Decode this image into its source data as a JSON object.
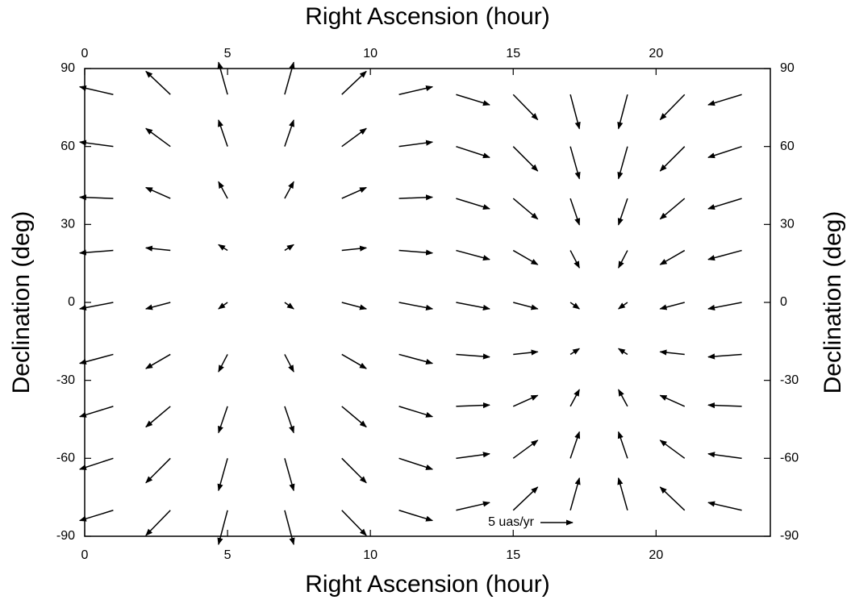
{
  "chart_data": {
    "type": "quiver",
    "xlabel": "Right Ascension (hour)",
    "ylabel": "Declination (deg)",
    "xlim": [
      0,
      24
    ],
    "ylim": [
      -90,
      90
    ],
    "xticks": [
      0,
      5,
      10,
      15,
      20
    ],
    "yticks": [
      -90,
      -60,
      -30,
      0,
      30,
      60,
      90
    ],
    "color": "#000000",
    "reference": {
      "label": "5 uas/yr",
      "value": 5
    },
    "x": [
      1,
      3,
      5,
      7,
      9,
      11,
      13,
      15,
      17,
      19,
      21,
      23,
      1,
      3,
      5,
      7,
      9,
      11,
      13,
      15,
      17,
      19,
      21,
      23,
      1,
      3,
      5,
      7,
      9,
      11,
      13,
      15,
      17,
      19,
      21,
      23,
      1,
      3,
      5,
      7,
      9,
      11,
      13,
      15,
      17,
      19,
      21,
      23,
      1,
      3,
      5,
      7,
      9,
      11,
      13,
      15,
      17,
      19,
      21,
      23,
      1,
      3,
      5,
      7,
      9,
      11,
      13,
      15,
      17,
      19,
      21,
      23,
      1,
      3,
      5,
      7,
      9,
      11,
      13,
      15,
      17,
      19,
      21,
      23,
      1,
      3,
      5,
      7,
      9,
      11,
      13,
      15,
      17,
      19,
      21,
      23,
      1,
      3,
      5,
      7,
      9,
      11,
      13,
      15,
      17,
      19,
      21,
      23
    ],
    "y": [
      -80,
      -80,
      -80,
      -80,
      -80,
      -80,
      -80,
      -80,
      -80,
      -80,
      -80,
      -80,
      -60,
      -60,
      -60,
      -60,
      -60,
      -60,
      -60,
      -60,
      -60,
      -60,
      -60,
      -60,
      -40,
      -40,
      -40,
      -40,
      -40,
      -40,
      -40,
      -40,
      -40,
      -40,
      -40,
      -40,
      -20,
      -20,
      -20,
      -20,
      -20,
      -20,
      -20,
      -20,
      -20,
      -20,
      -20,
      -20,
      0,
      0,
      0,
      0,
      0,
      0,
      0,
      0,
      0,
      0,
      0,
      0,
      20,
      20,
      20,
      20,
      20,
      20,
      20,
      20,
      20,
      20,
      20,
      20,
      40,
      40,
      40,
      40,
      40,
      40,
      40,
      40,
      40,
      40,
      40,
      40,
      60,
      60,
      60,
      60,
      60,
      60,
      60,
      60,
      60,
      60,
      60,
      60,
      80,
      80,
      80,
      80,
      80,
      80,
      80,
      80,
      80,
      80,
      80,
      80
    ],
    "u": [
      -5.2,
      -3.8,
      -1.4,
      1.4,
      3.8,
      5.2,
      5.2,
      3.8,
      1.4,
      -1.4,
      -3.8,
      -5.2,
      -5.2,
      -3.8,
      -1.4,
      1.4,
      3.8,
      5.2,
      5.2,
      3.8,
      1.4,
      -1.4,
      -3.8,
      -5.2,
      -5.2,
      -3.8,
      -1.4,
      1.4,
      3.8,
      5.2,
      5.2,
      3.8,
      1.4,
      -1.4,
      -3.8,
      -5.2,
      -5.2,
      -3.8,
      -1.4,
      1.4,
      3.8,
      5.2,
      5.2,
      3.8,
      1.4,
      -1.4,
      -3.8,
      -5.2,
      -5.2,
      -3.8,
      -1.4,
      1.4,
      3.8,
      5.2,
      5.2,
      3.8,
      1.4,
      -1.4,
      -3.8,
      -5.2,
      -5.2,
      -3.8,
      -1.4,
      1.4,
      3.8,
      5.2,
      5.2,
      3.8,
      1.4,
      -1.4,
      -3.8,
      -5.2,
      -5.2,
      -3.8,
      -1.4,
      1.4,
      3.8,
      5.2,
      5.2,
      3.8,
      1.4,
      -1.4,
      -3.8,
      -5.2,
      -5.2,
      -3.8,
      -1.4,
      1.4,
      3.8,
      5.2,
      5.2,
      3.8,
      1.4,
      -1.4,
      -3.8,
      -5.2,
      -5.2,
      -3.8,
      -1.4,
      1.4,
      3.8,
      5.2,
      5.2,
      3.8,
      1.4,
      -1.4,
      -3.8,
      -5.2
    ],
    "v": [
      -1.6,
      -3.9,
      -5.3,
      -5.3,
      -3.9,
      -1.6,
      1.2,
      3.6,
      5.0,
      5.0,
      3.6,
      1.2,
      -1.7,
      -3.8,
      -5.0,
      -5.0,
      -3.8,
      -1.7,
      0.7,
      2.8,
      4.1,
      4.1,
      2.8,
      0.7,
      -1.6,
      -3.2,
      -4.1,
      -4.1,
      -3.2,
      -1.6,
      0.2,
      1.7,
      2.6,
      2.6,
      1.7,
      0.2,
      -1.4,
      -2.2,
      -2.7,
      -2.7,
      -2.2,
      -1.4,
      -0.4,
      0.4,
      0.9,
      0.9,
      0.4,
      -0.4,
      -1.0,
      -1.0,
      -1.0,
      -1.0,
      -1.0,
      -1.0,
      -1.0,
      -1.0,
      -1.0,
      -1.0,
      -1.0,
      -1.0,
      -0.4,
      0.4,
      0.9,
      0.9,
      0.4,
      -0.4,
      -1.4,
      -2.2,
      -2.7,
      -2.7,
      -2.2,
      -1.4,
      0.2,
      1.7,
      2.6,
      2.6,
      1.7,
      0.2,
      -1.6,
      -3.2,
      -4.1,
      -4.1,
      -3.2,
      -1.6,
      0.7,
      2.8,
      4.1,
      4.1,
      2.8,
      0.7,
      -1.7,
      -3.8,
      -5.0,
      -5.0,
      -3.8,
      -1.7,
      1.2,
      3.6,
      5.0,
      5.0,
      3.6,
      1.2,
      -1.6,
      -3.9,
      -5.3,
      -5.3,
      -3.9,
      -1.6
    ]
  }
}
